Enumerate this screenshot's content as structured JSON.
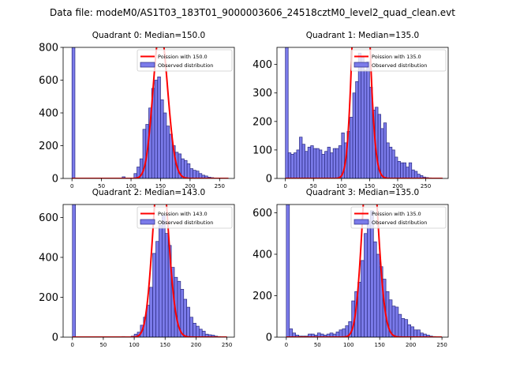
{
  "figure_title": "Data file: modeM0/AS1T03_183T01_9000003606_24518cztM0_level2_quad_clean.evt",
  "colors": {
    "bar_fill": "#7b7bea",
    "bar_edge": "#2a2a80",
    "poisson_line": "#ff0000",
    "axis": "#000000"
  },
  "chart_data": [
    {
      "type": "bar",
      "title": "Quadrant 0: Median=150.0",
      "median": 150.0,
      "bin_width": 5,
      "xlim": [
        -15,
        275
      ],
      "ylim": [
        0,
        800
      ],
      "xticks": [
        0,
        50,
        100,
        150,
        200,
        250
      ],
      "yticks": [
        0,
        200,
        400,
        600,
        800
      ],
      "legend": [
        "Poission with 150.0",
        "Observed distribution"
      ],
      "legend_position": "top-right",
      "series": [
        {
          "name": "Observed distribution",
          "type": "histogram",
          "bin_starts": [
            0,
            85,
            105,
            110,
            115,
            120,
            125,
            130,
            135,
            140,
            145,
            150,
            155,
            160,
            165,
            170,
            175,
            180,
            185,
            190,
            195,
            200,
            205,
            210,
            215,
            220,
            225,
            230,
            235
          ],
          "values": [
            800,
            10,
            30,
            70,
            120,
            300,
            330,
            430,
            550,
            600,
            620,
            480,
            400,
            320,
            270,
            200,
            160,
            150,
            120,
            110,
            90,
            60,
            50,
            45,
            30,
            20,
            15,
            8,
            5
          ]
        },
        {
          "name": "Poission with 150.0",
          "type": "line",
          "mean": 150.0,
          "x_range": [
            0,
            265
          ]
        }
      ]
    },
    {
      "type": "bar",
      "title": "Quadrant 1: Median=135.0",
      "median": 135.0,
      "bin_width": 5,
      "xlim": [
        -15,
        290
      ],
      "ylim": [
        0,
        460
      ],
      "xticks": [
        0,
        50,
        100,
        150,
        200,
        250
      ],
      "yticks": [
        0,
        100,
        200,
        300,
        400
      ],
      "legend": [
        "Poission with 135.0",
        "Observed distribution"
      ],
      "legend_position": "top-right",
      "series": [
        {
          "name": "Observed distribution",
          "type": "histogram",
          "bin_starts": [
            0,
            5,
            10,
            15,
            20,
            25,
            30,
            35,
            40,
            45,
            50,
            55,
            60,
            65,
            70,
            75,
            80,
            85,
            90,
            95,
            100,
            105,
            110,
            115,
            120,
            125,
            130,
            135,
            140,
            145,
            150,
            155,
            160,
            165,
            170,
            175,
            180,
            185,
            190,
            195,
            200,
            205,
            210,
            215,
            220,
            225,
            230,
            235,
            240,
            245,
            250,
            255
          ],
          "values": [
            460,
            90,
            85,
            90,
            100,
            145,
            120,
            95,
            110,
            115,
            105,
            105,
            100,
            85,
            95,
            110,
            90,
            105,
            105,
            115,
            160,
            125,
            165,
            215,
            300,
            340,
            440,
            425,
            380,
            410,
            320,
            240,
            250,
            225,
            175,
            195,
            125,
            110,
            100,
            75,
            60,
            55,
            55,
            40,
            55,
            30,
            25,
            15,
            10,
            5,
            3,
            2
          ]
        },
        {
          "name": "Poission with 135.0",
          "type": "line",
          "mean": 135.0,
          "x_range": [
            0,
            280
          ]
        }
      ]
    },
    {
      "type": "bar",
      "title": "Quadrant 2: Median=143.0",
      "median": 143.0,
      "bin_width": 5,
      "xlim": [
        -15,
        262
      ],
      "ylim": [
        0,
        665
      ],
      "xticks": [
        0,
        50,
        100,
        150,
        200,
        250
      ],
      "yticks": [
        0,
        200,
        400,
        600
      ],
      "legend": [
        "Poission with 143.0",
        "Observed distribution"
      ],
      "legend_position": "top-right",
      "series": [
        {
          "name": "Observed distribution",
          "type": "histogram",
          "bin_starts": [
            0,
            80,
            95,
            100,
            105,
            110,
            115,
            120,
            125,
            130,
            135,
            140,
            145,
            150,
            155,
            160,
            165,
            170,
            175,
            180,
            185,
            190,
            195,
            200,
            205,
            210,
            215,
            220,
            225,
            230,
            235
          ],
          "values": [
            665,
            3,
            5,
            15,
            25,
            60,
            100,
            160,
            250,
            420,
            480,
            560,
            610,
            520,
            460,
            350,
            300,
            280,
            240,
            190,
            150,
            100,
            70,
            55,
            40,
            30,
            15,
            12,
            10,
            5,
            3
          ]
        },
        {
          "name": "Poission with 143.0",
          "type": "line",
          "mean": 143.0,
          "x_range": [
            0,
            250
          ]
        }
      ]
    },
    {
      "type": "bar",
      "title": "Quadrant 3: Median=135.0",
      "median": 135.0,
      "bin_width": 5,
      "xlim": [
        -15,
        260
      ],
      "ylim": [
        0,
        640
      ],
      "xticks": [
        0,
        50,
        100,
        150,
        200,
        250
      ],
      "yticks": [
        0,
        200,
        400,
        600
      ],
      "legend": [
        "Poission with 135.0",
        "Observed distribution"
      ],
      "legend_position": "top-right",
      "series": [
        {
          "name": "Observed distribution",
          "type": "histogram",
          "bin_starts": [
            0,
            5,
            10,
            15,
            20,
            25,
            30,
            35,
            40,
            45,
            50,
            55,
            60,
            65,
            70,
            75,
            80,
            85,
            90,
            95,
            100,
            105,
            110,
            115,
            120,
            125,
            130,
            135,
            140,
            145,
            150,
            155,
            160,
            165,
            170,
            175,
            180,
            185,
            190,
            195,
            200,
            205,
            210,
            215,
            220,
            225,
            230,
            235
          ],
          "values": [
            640,
            40,
            20,
            10,
            5,
            5,
            5,
            15,
            15,
            10,
            20,
            15,
            10,
            15,
            20,
            15,
            25,
            35,
            40,
            55,
            75,
            175,
            220,
            265,
            370,
            500,
            560,
            610,
            460,
            400,
            340,
            280,
            220,
            180,
            150,
            145,
            110,
            90,
            85,
            60,
            50,
            35,
            35,
            20,
            15,
            10,
            5,
            3
          ]
        },
        {
          "name": "Poission with 135.0",
          "type": "line",
          "mean": 135.0,
          "x_range": [
            0,
            250
          ]
        }
      ]
    }
  ]
}
